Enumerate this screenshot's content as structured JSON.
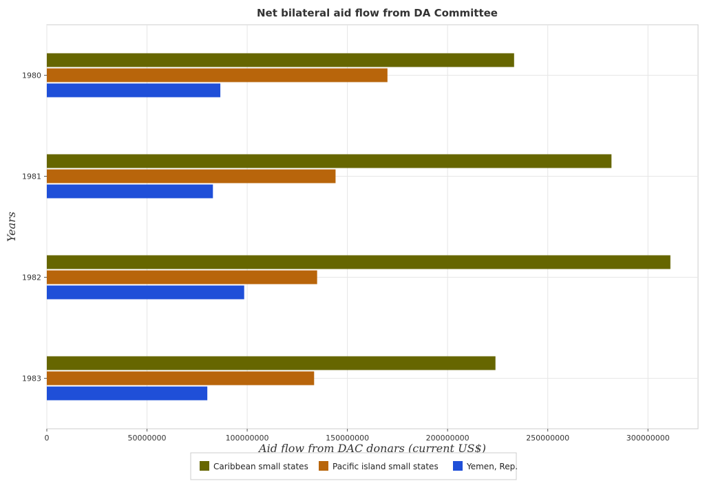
{
  "chart_data": {
    "type": "bar",
    "orientation": "horizontal",
    "title": "Net bilateral aid flow from DA Committee",
    "xlabel": "Aid flow from DAC donars (current US$)",
    "ylabel": "Years",
    "categories": [
      "1980",
      "1981",
      "1982",
      "1983"
    ],
    "series": [
      {
        "name": "Caribbean small states",
        "color": "#666600",
        "values": [
          233200000,
          281800000,
          311200000,
          223900000
        ]
      },
      {
        "name": "Pacific island small states",
        "color": "#b8650b",
        "values": [
          170000000,
          144100000,
          134900000,
          133400000
        ]
      },
      {
        "name": "Yemen, Rep.",
        "color": "#1f4fd8",
        "values": [
          86600000,
          82900000,
          98500000,
          80100000
        ]
      }
    ],
    "xlim": [
      0,
      325000000
    ],
    "xticks": [
      0,
      50000000,
      100000000,
      150000000,
      200000000,
      250000000,
      300000000
    ],
    "xtick_labels": [
      "0",
      "50000000",
      "100000000",
      "150000000",
      "200000000",
      "250000000",
      "300000000"
    ],
    "grid": true,
    "legend_position": "bottom-center"
  }
}
